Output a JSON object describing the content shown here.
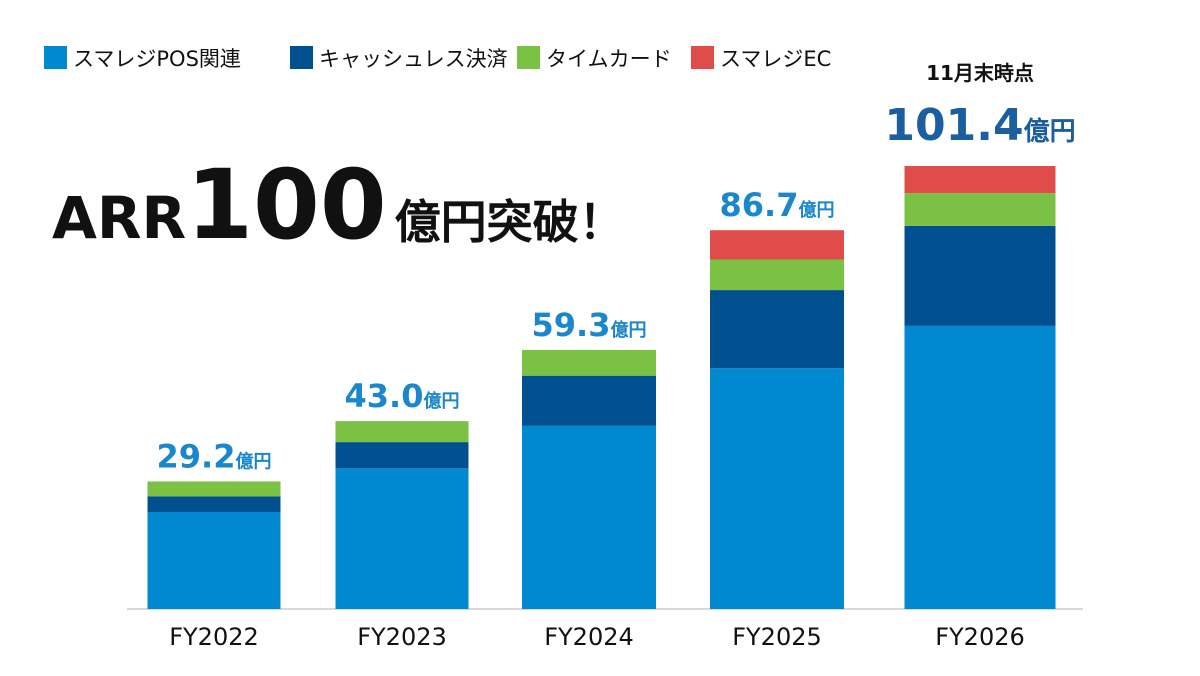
{
  "chart_data": {
    "type": "stacked_bar",
    "title_parts": [
      "ARR",
      "100",
      "億円突破！"
    ],
    "categories": [
      "FY2022",
      "FY2023",
      "FY2024",
      "FY2025",
      "FY2026"
    ],
    "series": [
      {
        "name": "スマレジPOS関連",
        "color": "#0088d1",
        "values": [
          22.2,
          32.2,
          42.0,
          55.1,
          64.8
        ]
      },
      {
        "name": "キャッシュレス決済",
        "color": "#00508f",
        "values": [
          3.6,
          6.0,
          11.4,
          17.9,
          22.9
        ]
      },
      {
        "name": "タイムカード",
        "color": "#7bc143",
        "values": [
          3.4,
          4.8,
          5.9,
          7.0,
          7.5
        ]
      },
      {
        "name": "スマレジEC",
        "color": "#e04c4a",
        "values": [
          null,
          null,
          null,
          6.7,
          6.2
        ]
      }
    ],
    "totals": [
      29.2,
      43.0,
      59.3,
      86.7,
      101.4
    ],
    "total_labels": [
      "29.2",
      "43.0",
      "59.3",
      "86.7",
      "101.4"
    ],
    "total_unit": "億円",
    "annotation": "11月末時点"
  }
}
